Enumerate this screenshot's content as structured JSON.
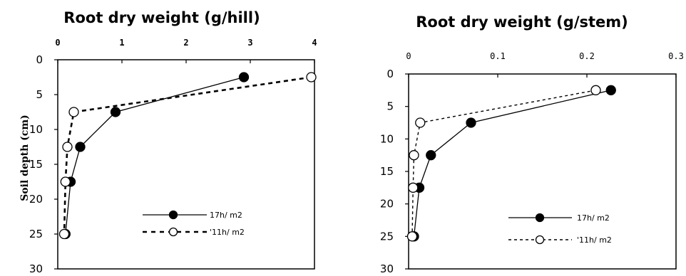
{
  "chart_data": [
    {
      "type": "line",
      "title": "Root dry weight (g/hill)",
      "xlabel": "",
      "ylabel": "Soil depth (cm)",
      "xlim": [
        0,
        4
      ],
      "ylim": [
        0,
        30
      ],
      "x_ticks": [
        "0",
        "1",
        "2",
        "3",
        "4"
      ],
      "y_ticks": [
        "0",
        "5",
        "10",
        "15",
        "20",
        "25",
        "30"
      ],
      "y_inverted": true,
      "legend_position": "bottom-right",
      "series": [
        {
          "name": "17h/ m2",
          "style": "solid",
          "marker": "filled-circle",
          "color": "#000000",
          "x": [
            2.9,
            0.9,
            0.35,
            0.2,
            0.12
          ],
          "y": [
            2.5,
            7.5,
            12.5,
            17.5,
            25
          ]
        },
        {
          "name": "11h/ m2",
          "style": "dashed",
          "marker": "open-circle",
          "color": "#000000",
          "x": [
            3.95,
            0.25,
            0.15,
            0.12,
            0.1
          ],
          "y": [
            2.5,
            7.5,
            12.5,
            17.5,
            25
          ]
        }
      ]
    },
    {
      "type": "line",
      "title": "Root dry weight (g/stem)",
      "xlabel": "",
      "ylabel": "",
      "xlim": [
        0,
        0.3
      ],
      "ylim": [
        0,
        30
      ],
      "x_ticks": [
        "0",
        "0.1",
        "0.2",
        "0.3"
      ],
      "y_ticks": [
        "0",
        "5",
        "10",
        "15",
        "20",
        "25",
        "30"
      ],
      "y_inverted": true,
      "legend_position": "bottom-right",
      "series": [
        {
          "name": "17h/ m2",
          "style": "solid",
          "marker": "filled-circle",
          "color": "#000000",
          "x": [
            0.227,
            0.07,
            0.025,
            0.012,
            0.006
          ],
          "y": [
            2.5,
            7.5,
            12.5,
            17.5,
            25
          ]
        },
        {
          "name": "11h/ m2",
          "style": "dashed",
          "marker": "open-circle",
          "color": "#000000",
          "x": [
            0.21,
            0.013,
            0.006,
            0.005,
            0.004
          ],
          "y": [
            2.5,
            7.5,
            12.5,
            17.5,
            25
          ]
        }
      ]
    }
  ]
}
